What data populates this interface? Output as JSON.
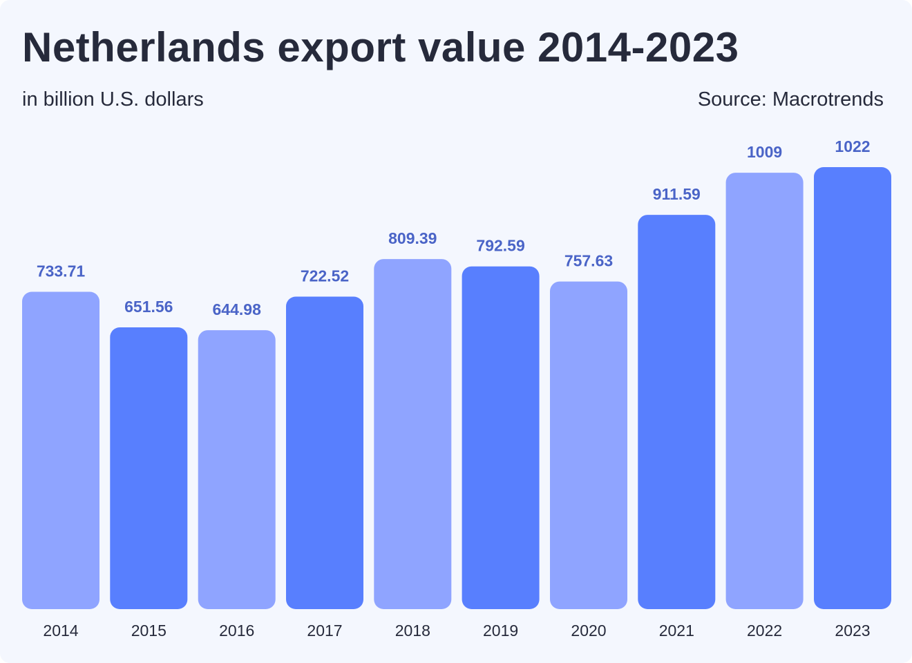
{
  "header": {
    "title": "Netherlands export value 2014-2023",
    "subtitle": "in billion U.S. dollars",
    "source": "Source: Macrotrends"
  },
  "colors": {
    "background": "#f4f7fe",
    "bar_light": "#8fa4ff",
    "bar_dark": "#587ffe",
    "value_label": "#4a64c7",
    "text": "#262a3b"
  },
  "chart_data": {
    "type": "bar",
    "title": "Netherlands export value 2014-2023",
    "xlabel": "",
    "ylabel": "",
    "categories": [
      "2014",
      "2015",
      "2016",
      "2017",
      "2018",
      "2019",
      "2020",
      "2021",
      "2022",
      "2023"
    ],
    "values": [
      733.71,
      651.56,
      644.98,
      722.52,
      809.39,
      792.59,
      757.63,
      911.59,
      1009,
      1022
    ],
    "value_labels": [
      "733.71",
      "651.56",
      "644.98",
      "722.52",
      "809.39",
      "792.59",
      "757.63",
      "911.59",
      "1009",
      "1022"
    ],
    "bar_colors": [
      "#8fa4ff",
      "#587ffe",
      "#8fa4ff",
      "#587ffe",
      "#8fa4ff",
      "#587ffe",
      "#8fa4ff",
      "#587ffe",
      "#8fa4ff",
      "#587ffe"
    ],
    "ylim": [
      0,
      1022
    ],
    "grid": false,
    "legend": "none"
  }
}
